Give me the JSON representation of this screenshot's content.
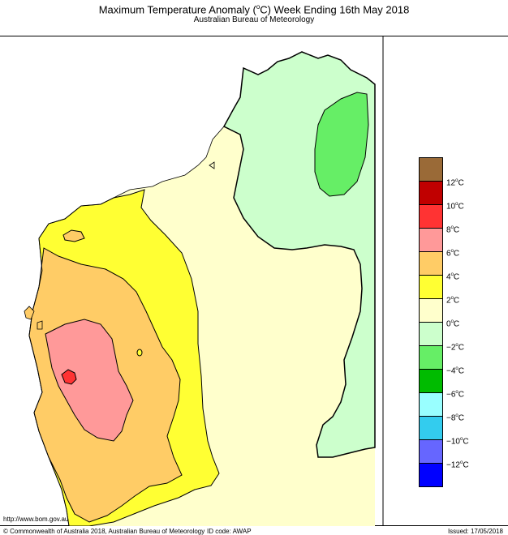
{
  "header": {
    "title_prefix": "Maximum Temperature Anomaly (",
    "title_degree": "o",
    "title_suffix": "C)   Week Ending 16th May 2018",
    "subtitle": "Australian Bureau of Meteorology"
  },
  "legend": {
    "colors": [
      "#9a6a37",
      "#c00000",
      "#ff3333",
      "#ff9999",
      "#ffcc66",
      "#ffff33",
      "#ffffcc",
      "#ccffcc",
      "#66ee66",
      "#00bb00",
      "#99ffff",
      "#33ccee",
      "#6666ff",
      "#0000ff"
    ],
    "ticks": [
      {
        "value": "12",
        "unit": "C"
      },
      {
        "value": "10",
        "unit": "C"
      },
      {
        "value": "8",
        "unit": "C"
      },
      {
        "value": "6",
        "unit": "C"
      },
      {
        "value": "4",
        "unit": "C"
      },
      {
        "value": "2",
        "unit": "C"
      },
      {
        "value": "0",
        "unit": "C"
      },
      {
        "value": "−2",
        "unit": "C"
      },
      {
        "value": "−4",
        "unit": "C"
      },
      {
        "value": "−6",
        "unit": "C"
      },
      {
        "value": "−8",
        "unit": "C"
      },
      {
        "value": "−10",
        "unit": "C"
      },
      {
        "value": "−12",
        "unit": "C"
      }
    ]
  },
  "map": {
    "region_colors": {
      "ocean": "#ffffff",
      "anomaly_0_2": "#ffffcc",
      "anomaly_2_4": "#ffff33",
      "anomaly_4_6": "#ffcc66",
      "anomaly_6_8": "#ff9999",
      "anomaly_8_10": "#ff3333",
      "anomaly_neg2_0": "#ccffcc",
      "anomaly_neg4_neg2": "#66ee66"
    }
  },
  "footer": {
    "url": "http://www.bom.gov.au",
    "copyright": "© Commonwealth of Australia 2018, Australian Bureau of Meteorology",
    "id_code": "ID code: AWAP",
    "issued": "Issued: 17/05/2018"
  }
}
